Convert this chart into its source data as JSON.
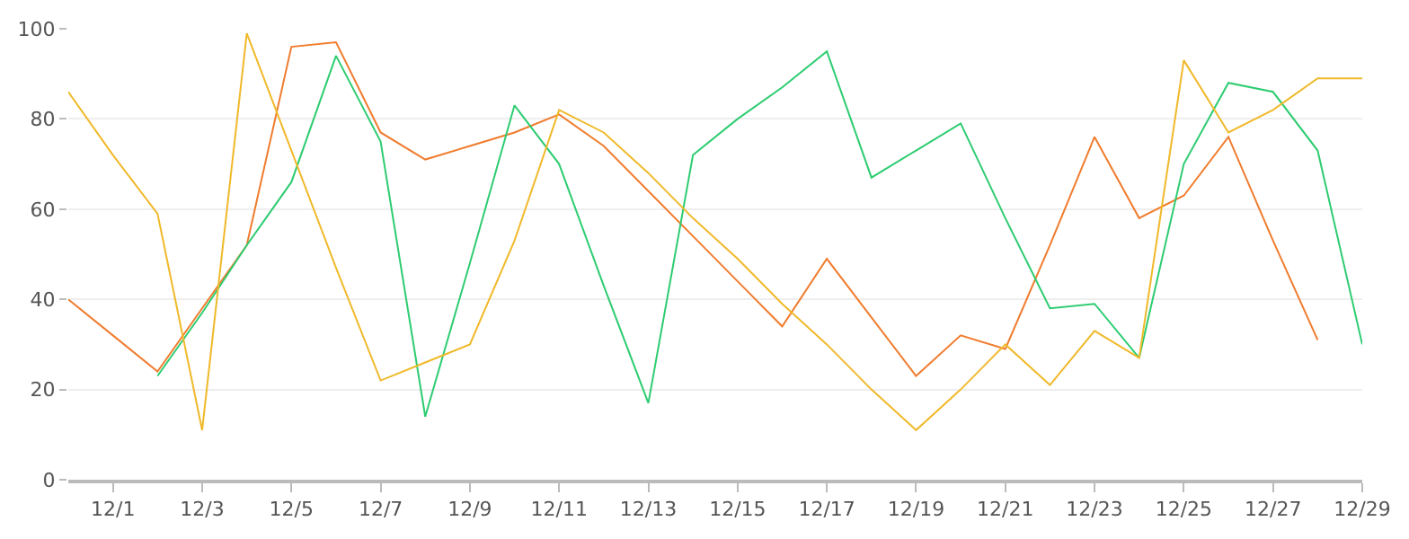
{
  "chart_data": {
    "type": "line",
    "x": [
      "--11-30",
      "--12-01",
      "--12-02",
      "--12-03",
      "--12-04",
      "--12-05",
      "--12-06",
      "--12-07",
      "--12-08",
      "--12-09",
      "--12-10",
      "--12-11",
      "--12-12",
      "--12-13",
      "--12-14",
      "--12-15",
      "--12-16",
      "--12-17",
      "--12-18",
      "--12-19",
      "--12-20",
      "--12-21",
      "--12-22",
      "--12-23",
      "--12-24",
      "--12-25",
      "--12-26",
      "--12-27",
      "--12-28",
      "--12-29"
    ],
    "series": [
      {
        "color": "#f07c2e",
        "values": [
          40,
          32,
          24,
          38,
          52,
          96,
          97,
          77,
          71,
          74,
          77,
          81,
          74,
          64,
          54,
          44,
          34,
          49,
          36,
          23,
          32,
          29,
          52,
          76,
          58,
          63,
          76,
          53,
          31,
          null
        ]
      },
      {
        "color": "#2ecc71",
        "values": [
          null,
          null,
          23,
          37,
          52,
          66,
          94,
          75,
          14,
          48,
          83,
          70,
          43,
          17,
          72,
          80,
          87,
          95,
          67,
          73,
          79,
          58,
          38,
          39,
          27,
          70,
          88,
          86,
          73,
          30
        ]
      },
      {
        "color": "#f0b92a",
        "values": [
          86,
          72,
          59,
          11,
          99,
          73,
          47,
          22,
          26,
          30,
          53,
          82,
          77,
          68,
          58,
          49,
          39,
          30,
          20,
          11,
          20,
          30,
          21,
          33,
          27,
          93,
          77,
          82,
          89,
          89
        ]
      }
    ],
    "xlim": [
      "--11-30",
      "--12-29"
    ],
    "xticks": [
      {
        "value": "--12-01",
        "label": "12/1"
      },
      {
        "value": "--12-03",
        "label": "12/3"
      },
      {
        "value": "--12-05",
        "label": "12/5"
      },
      {
        "value": "--12-07",
        "label": "12/7"
      },
      {
        "value": "--12-09",
        "label": "12/9"
      },
      {
        "value": "--12-11",
        "label": "12/11"
      },
      {
        "value": "--12-13",
        "label": "12/13"
      },
      {
        "value": "--12-15",
        "label": "12/15"
      },
      {
        "value": "--12-17",
        "label": "12/17"
      },
      {
        "value": "--12-19",
        "label": "12/19"
      },
      {
        "value": "--12-21",
        "label": "12/21"
      },
      {
        "value": "--12-23",
        "label": "12/23"
      },
      {
        "value": "--12-25",
        "label": "12/25"
      },
      {
        "value": "--12-27",
        "label": "12/27"
      },
      {
        "value": "--12-29",
        "label": "12/29"
      }
    ],
    "ylim": [
      0,
      100
    ],
    "yticks": [
      0,
      20,
      40,
      60,
      80,
      100
    ],
    "grid": "y",
    "marker": "none",
    "line_style": "solid"
  }
}
